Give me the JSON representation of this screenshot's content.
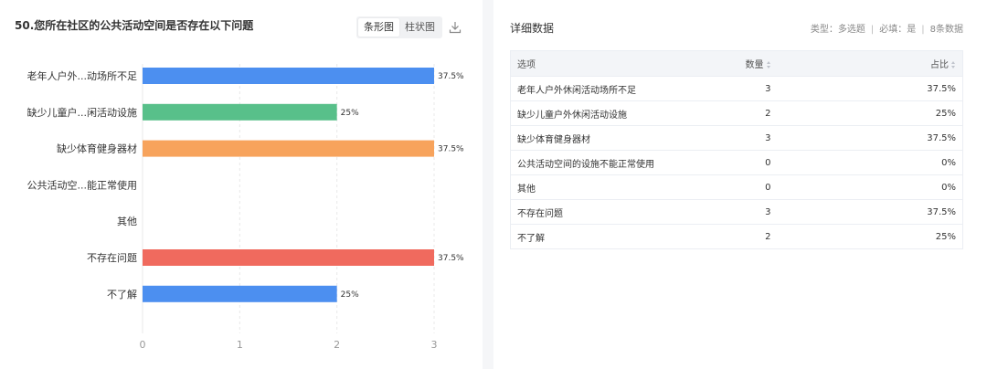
{
  "question_title": "50.您所在社区的公共活动空间是否存在以下问题",
  "view_toggle": {
    "bar_h": "条形图",
    "bar_v": "柱状图"
  },
  "chart_data": {
    "type": "bar",
    "orientation": "horizontal",
    "categories": [
      "老年人户外...动场所不足",
      "缺少儿童户...闲活动设施",
      "缺少体育健身器材",
      "公共活动空...能正常使用",
      "其他",
      "不存在问题",
      "不了解"
    ],
    "values": [
      3,
      2,
      3,
      0,
      0,
      3,
      2
    ],
    "value_labels": [
      "37.5%",
      "25%",
      "37.5%",
      "",
      "",
      "37.5%",
      "25%"
    ],
    "bar_colors": [
      "#4c8ff0",
      "#58c08a",
      "#f7a35c",
      "#4c8ff0",
      "#4c8ff0",
      "#f06a5e",
      "#4c8ff0"
    ],
    "xticks": [
      "0",
      "1",
      "2",
      "3"
    ],
    "xlim": [
      0,
      3
    ],
    "grid": true
  },
  "detail": {
    "title": "详细数据",
    "meta": {
      "type": "类型：多选题",
      "required": "必填：是",
      "count": "8条数据"
    },
    "columns": {
      "option": "选项",
      "count": "数量",
      "percent": "占比"
    },
    "rows": [
      {
        "option": "老年人户外休闲活动场所不足",
        "count": "3",
        "percent": "37.5%"
      },
      {
        "option": "缺少儿童户外休闲活动设施",
        "count": "2",
        "percent": "25%"
      },
      {
        "option": "缺少体育健身器材",
        "count": "3",
        "percent": "37.5%"
      },
      {
        "option": "公共活动空间的设施不能正常使用",
        "count": "0",
        "percent": "0%"
      },
      {
        "option": "其他",
        "count": "0",
        "percent": "0%"
      },
      {
        "option": "不存在问题",
        "count": "3",
        "percent": "37.5%"
      },
      {
        "option": "不了解",
        "count": "2",
        "percent": "25%"
      }
    ]
  }
}
